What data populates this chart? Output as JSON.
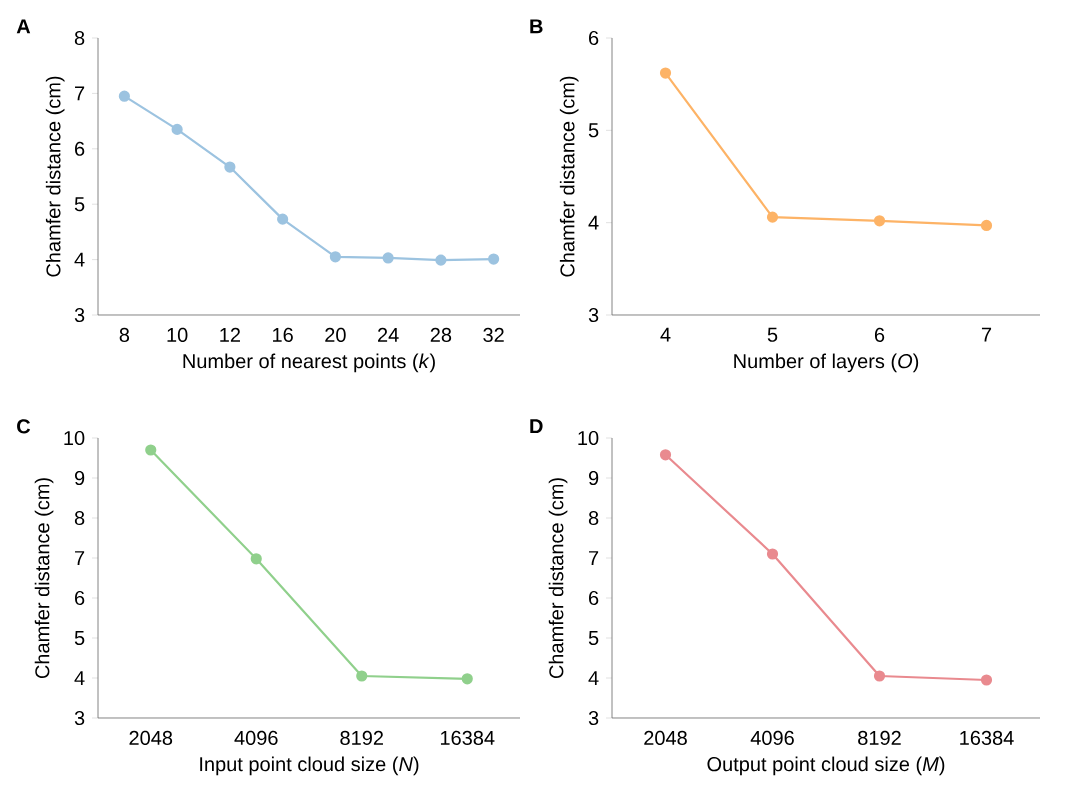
{
  "chart_data": [
    {
      "type": "line",
      "title": "A",
      "xlabel": "Number of nearest points (*k*)",
      "ylabel": "Chamfer distance (cm)",
      "categories": [
        "8",
        "10",
        "12",
        "16",
        "20",
        "24",
        "28",
        "32"
      ],
      "series": [
        {
          "color": "#9cc3e0",
          "values": [
            6.95,
            6.35,
            5.67,
            4.73,
            4.05,
            4.03,
            3.99,
            4.01
          ]
        }
      ],
      "ylim": [
        3,
        8
      ],
      "yticks": [
        3,
        4,
        5,
        6,
        7,
        8
      ],
      "marker": "circle"
    },
    {
      "type": "line",
      "title": "B",
      "xlabel": "Number of layers (*O*)",
      "ylabel": "Chamfer distance (cm)",
      "categories": [
        "4",
        "5",
        "6",
        "7"
      ],
      "series": [
        {
          "color": "#fdb366",
          "values": [
            5.62,
            4.06,
            4.02,
            3.97
          ]
        }
      ],
      "ylim": [
        3,
        6
      ],
      "yticks": [
        3,
        4,
        5,
        6
      ],
      "marker": "circle"
    },
    {
      "type": "line",
      "title": "C",
      "xlabel": "Input point cloud size (*N*)",
      "ylabel": "Chamfer distance (cm)",
      "categories": [
        "2048",
        "4096",
        "8192",
        "16384"
      ],
      "series": [
        {
          "color": "#90d08c",
          "values": [
            9.7,
            6.98,
            4.05,
            3.98
          ]
        }
      ],
      "ylim": [
        3,
        10
      ],
      "yticks": [
        3,
        4,
        5,
        6,
        7,
        8,
        9,
        10
      ],
      "marker": "circle"
    },
    {
      "type": "line",
      "title": "D",
      "xlabel": "Output point cloud size (*M*)",
      "ylabel": "Chamfer distance (cm)",
      "categories": [
        "2048",
        "4096",
        "8192",
        "16384"
      ],
      "series": [
        {
          "color": "#e98a8f",
          "values": [
            9.58,
            7.1,
            4.05,
            3.95
          ]
        }
      ],
      "ylim": [
        3,
        10
      ],
      "yticks": [
        3,
        4,
        5,
        6,
        7,
        8,
        9,
        10
      ],
      "marker": "circle"
    }
  ]
}
